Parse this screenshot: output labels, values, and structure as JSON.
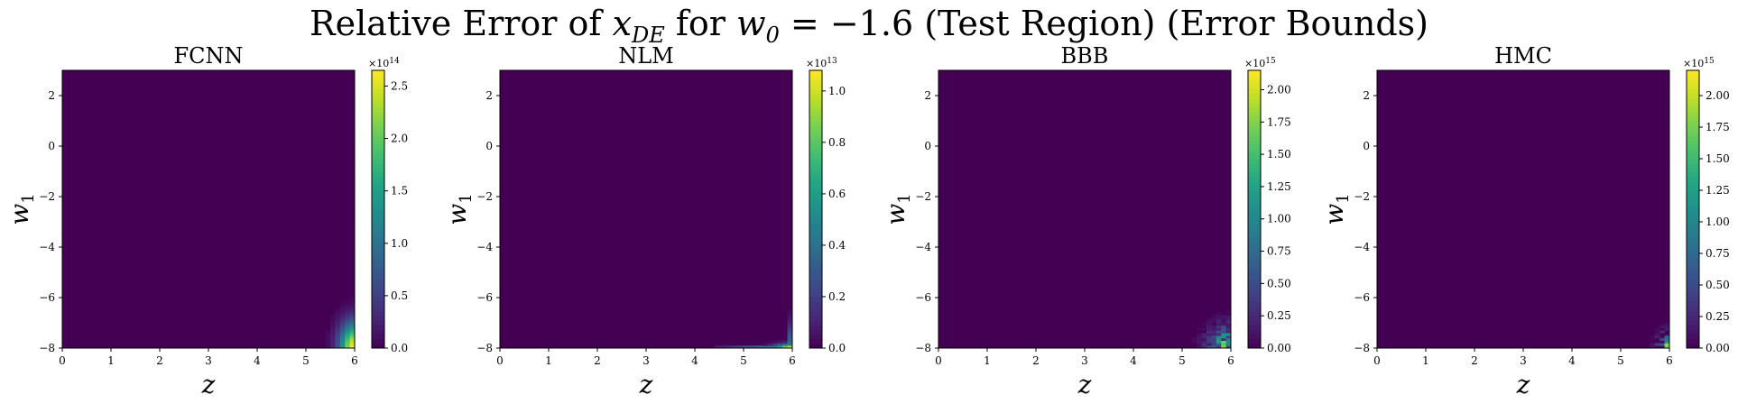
{
  "figure": {
    "title_prefix": "Relative Error of ",
    "title_var": "x",
    "title_var_sub": "DE",
    "title_mid": " for ",
    "title_param": "w",
    "title_param_sub": "0",
    "title_suffix": " = −1.6 (Test Region) (Error Bounds)"
  },
  "chart_data": [
    {
      "type": "heatmap",
      "title": "FCNN",
      "xlabel": "z",
      "ylabel": "w",
      "ylabel_sub": "1",
      "xlim": [
        0,
        6
      ],
      "ylim": [
        -8,
        3
      ],
      "xticks": [
        0,
        1,
        2,
        3,
        4,
        5,
        6
      ],
      "yticks": [
        -8,
        -6,
        -4,
        -2,
        0,
        2
      ],
      "colorbar": {
        "multiplier": "×10",
        "exponent": "14",
        "min": 0,
        "max": 2.65,
        "ticks": [
          "0.0",
          "0.5",
          "1.0",
          "1.5",
          "2.0",
          "2.5"
        ],
        "tick_values": [
          0.0,
          0.5,
          1.0,
          1.5,
          2.0,
          2.5
        ]
      },
      "pattern": "smooth-corner",
      "hotspot": [
        6,
        -8
      ],
      "colormap": "viridis"
    },
    {
      "type": "heatmap",
      "title": "NLM",
      "xlabel": "z",
      "ylabel": "w",
      "ylabel_sub": "1",
      "xlim": [
        0,
        6
      ],
      "ylim": [
        -8,
        3
      ],
      "xticks": [
        0,
        1,
        2,
        3,
        4,
        5,
        6
      ],
      "yticks": [
        -8,
        -6,
        -4,
        -2,
        0,
        2
      ],
      "colorbar": {
        "multiplier": "×10",
        "exponent": "13",
        "min": 0,
        "max": 1.08,
        "ticks": [
          "0.0",
          "0.2",
          "0.4",
          "0.6",
          "0.8",
          "1.0"
        ],
        "tick_values": [
          0.0,
          0.2,
          0.4,
          0.6,
          0.8,
          1.0
        ]
      },
      "pattern": "edge-streak",
      "hotspot": [
        6,
        -8
      ],
      "colormap": "viridis"
    },
    {
      "type": "heatmap",
      "title": "BBB",
      "xlabel": "z",
      "ylabel": "w",
      "ylabel_sub": "1",
      "xlim": [
        0,
        6
      ],
      "ylim": [
        -8,
        3
      ],
      "xticks": [
        0,
        1,
        2,
        3,
        4,
        5,
        6
      ],
      "yticks": [
        -8,
        -6,
        -4,
        -2,
        0,
        2
      ],
      "colorbar": {
        "multiplier": "×10",
        "exponent": "15",
        "min": 0,
        "max": 2.15,
        "ticks": [
          "0.00",
          "0.25",
          "0.50",
          "0.75",
          "1.00",
          "1.25",
          "1.50",
          "1.75",
          "2.00"
        ],
        "tick_values": [
          0.0,
          0.25,
          0.5,
          0.75,
          1.0,
          1.25,
          1.5,
          1.75,
          2.0
        ]
      },
      "pattern": "noisy-corner",
      "hotspot": [
        6,
        -8
      ],
      "colormap": "viridis"
    },
    {
      "type": "heatmap",
      "title": "HMC",
      "xlabel": "z",
      "ylabel": "w",
      "ylabel_sub": "1",
      "xlim": [
        0,
        6
      ],
      "ylim": [
        -8,
        3
      ],
      "xticks": [
        0,
        1,
        2,
        3,
        4,
        5,
        6
      ],
      "yticks": [
        -8,
        -6,
        -4,
        -2,
        0,
        2
      ],
      "colorbar": {
        "multiplier": "×10",
        "exponent": "15",
        "min": 0,
        "max": 2.2,
        "ticks": [
          "0.00",
          "0.25",
          "0.50",
          "0.75",
          "1.00",
          "1.25",
          "1.50",
          "1.75",
          "2.00"
        ],
        "tick_values": [
          0.0,
          0.25,
          0.5,
          0.75,
          1.0,
          1.25,
          1.5,
          1.75,
          2.0
        ]
      },
      "pattern": "sparse-corner",
      "hotspot": [
        6,
        -8
      ],
      "colormap": "viridis"
    }
  ]
}
